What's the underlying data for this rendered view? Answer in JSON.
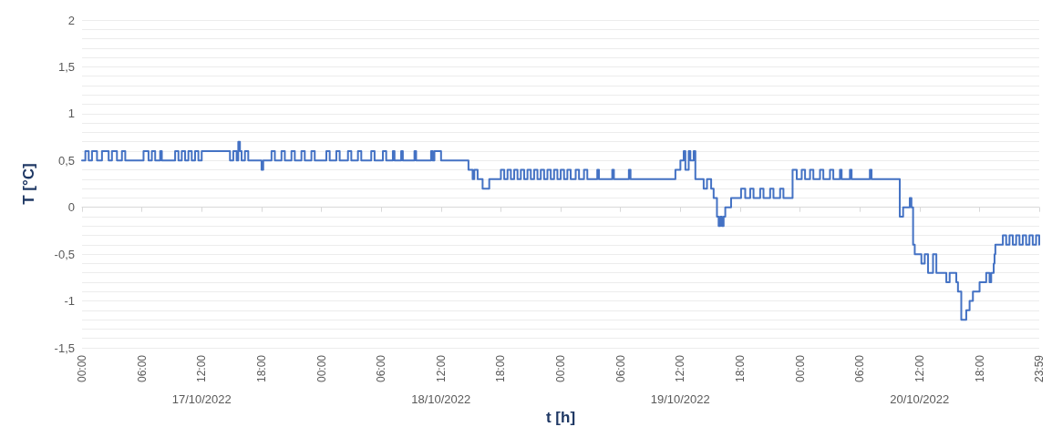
{
  "chart_data": {
    "type": "step",
    "xlabel": "t [h]",
    "ylabel": "T [°C]",
    "grid": "y",
    "marker": "none",
    "line_style": "solid",
    "xlim": [
      "2022-10-17T00:00",
      "2022-10-20T23:59"
    ],
    "xticks": [
      {
        "value": "2022-10-17T00:00",
        "label": "00:00"
      },
      {
        "value": "2022-10-17T06:00",
        "label": "06:00"
      },
      {
        "value": "2022-10-17T12:00",
        "label": "12:00"
      },
      {
        "value": "2022-10-17T18:00",
        "label": "18:00"
      },
      {
        "value": "2022-10-18T00:00",
        "label": "00:00"
      },
      {
        "value": "2022-10-18T06:00",
        "label": "06:00"
      },
      {
        "value": "2022-10-18T12:00",
        "label": "12:00"
      },
      {
        "value": "2022-10-18T18:00",
        "label": "18:00"
      },
      {
        "value": "2022-10-19T00:00",
        "label": "00:00"
      },
      {
        "value": "2022-10-19T06:00",
        "label": "06:00"
      },
      {
        "value": "2022-10-19T12:00",
        "label": "12:00"
      },
      {
        "value": "2022-10-19T18:00",
        "label": "18:00"
      },
      {
        "value": "2022-10-20T00:00",
        "label": "00:00"
      },
      {
        "value": "2022-10-20T06:00",
        "label": "06:00"
      },
      {
        "value": "2022-10-20T12:00",
        "label": "12:00"
      },
      {
        "value": "2022-10-20T18:00",
        "label": "18:00"
      },
      {
        "value": "2022-10-20T23:59",
        "label": "23:59"
      }
    ],
    "ylim": [
      -1.5,
      2
    ],
    "yticks": [
      {
        "value": -1.5,
        "label": "-1,5"
      },
      {
        "value": -1.4,
        "label": null
      },
      {
        "value": -1.3,
        "label": null
      },
      {
        "value": -1.2,
        "label": null
      },
      {
        "value": -1.1,
        "label": null
      },
      {
        "value": -1,
        "label": "-1"
      },
      {
        "value": -0.9,
        "label": null
      },
      {
        "value": -0.8,
        "label": null
      },
      {
        "value": -0.7,
        "label": null
      },
      {
        "value": -0.6,
        "label": null
      },
      {
        "value": -0.5,
        "label": "-0,5"
      },
      {
        "value": -0.4,
        "label": null
      },
      {
        "value": -0.3,
        "label": null
      },
      {
        "value": -0.2,
        "label": null
      },
      {
        "value": -0.1,
        "label": null
      },
      {
        "value": 0,
        "label": "0"
      },
      {
        "value": 0.1,
        "label": null
      },
      {
        "value": 0.2,
        "label": null
      },
      {
        "value": 0.3,
        "label": null
      },
      {
        "value": 0.4,
        "label": null
      },
      {
        "value": 0.5,
        "label": "0,5"
      },
      {
        "value": 0.6,
        "label": null
      },
      {
        "value": 0.7,
        "label": null
      },
      {
        "value": 0.8,
        "label": null
      },
      {
        "value": 0.9,
        "label": null
      },
      {
        "value": 1,
        "label": "1"
      },
      {
        "value": 1.1,
        "label": null
      },
      {
        "value": 1.2,
        "label": null
      },
      {
        "value": 1.3,
        "label": null
      },
      {
        "value": 1.4,
        "label": null
      },
      {
        "value": 1.5,
        "label": "1,5"
      },
      {
        "value": 1.6,
        "label": null
      },
      {
        "value": 1.7,
        "label": null
      },
      {
        "value": 1.8,
        "label": null
      },
      {
        "value": 1.9,
        "label": null
      },
      {
        "value": 2,
        "label": "2"
      }
    ],
    "annotations": [
      "17/10/2022",
      "18/10/2022",
      "19/10/2022",
      "20/10/2022"
    ],
    "series": [
      {
        "color": "#4472c4",
        "x": [
          "2022-10-17T00:00",
          "2022-10-17T00:20",
          "2022-10-17T00:40",
          "2022-10-17T01:00",
          "2022-10-17T01:30",
          "2022-10-17T02:00",
          "2022-10-17T02:40",
          "2022-10-17T03:00",
          "2022-10-17T03:30",
          "2022-10-17T04:00",
          "2022-10-17T04:20",
          "2022-10-17T06:10",
          "2022-10-17T06:40",
          "2022-10-17T07:00",
          "2022-10-17T07:20",
          "2022-10-17T07:50",
          "2022-10-17T08:00",
          "2022-10-17T09:20",
          "2022-10-17T09:40",
          "2022-10-17T10:00",
          "2022-10-17T10:20",
          "2022-10-17T10:40",
          "2022-10-17T11:00",
          "2022-10-17T11:20",
          "2022-10-17T11:40",
          "2022-10-17T12:00",
          "2022-10-17T14:50",
          "2022-10-17T15:10",
          "2022-10-17T15:30",
          "2022-10-17T15:40",
          "2022-10-17T15:50",
          "2022-10-17T16:00",
          "2022-10-17T16:20",
          "2022-10-17T16:40",
          "2022-10-17T18:00",
          "2022-10-17T18:10",
          "2022-10-17T19:00",
          "2022-10-17T19:20",
          "2022-10-17T20:00",
          "2022-10-17T20:20",
          "2022-10-17T21:00",
          "2022-10-17T21:20",
          "2022-10-17T22:00",
          "2022-10-17T22:20",
          "2022-10-17T23:00",
          "2022-10-17T23:20",
          "2022-10-18T00:30",
          "2022-10-18T00:50",
          "2022-10-18T01:30",
          "2022-10-18T01:50",
          "2022-10-18T02:40",
          "2022-10-18T03:00",
          "2022-10-18T03:40",
          "2022-10-18T04:00",
          "2022-10-18T05:00",
          "2022-10-18T05:20",
          "2022-10-18T06:10",
          "2022-10-18T06:30",
          "2022-10-18T07:10",
          "2022-10-18T07:20",
          "2022-10-18T08:00",
          "2022-10-18T08:10",
          "2022-10-18T09:20",
          "2022-10-18T09:30",
          "2022-10-18T11:00",
          "2022-10-18T11:10",
          "2022-10-18T11:20",
          "2022-10-18T12:00",
          "2022-10-18T14:45",
          "2022-10-18T15:10",
          "2022-10-18T15:20",
          "2022-10-18T15:40",
          "2022-10-18T16:10",
          "2022-10-18T16:50",
          "2022-10-18T18:00",
          "2022-10-18T18:20",
          "2022-10-18T18:40",
          "2022-10-18T19:00",
          "2022-10-18T19:20",
          "2022-10-18T19:40",
          "2022-10-18T20:00",
          "2022-10-18T20:20",
          "2022-10-18T20:40",
          "2022-10-18T21:00",
          "2022-10-18T21:20",
          "2022-10-18T21:40",
          "2022-10-18T22:00",
          "2022-10-18T22:20",
          "2022-10-18T22:40",
          "2022-10-18T23:00",
          "2022-10-18T23:20",
          "2022-10-18T23:40",
          "2022-10-19T00:00",
          "2022-10-19T00:20",
          "2022-10-19T00:40",
          "2022-10-19T01:00",
          "2022-10-19T01:30",
          "2022-10-19T01:50",
          "2022-10-19T02:20",
          "2022-10-19T02:40",
          "2022-10-19T03:40",
          "2022-10-19T03:50",
          "2022-10-19T05:10",
          "2022-10-19T05:20",
          "2022-10-19T06:50",
          "2022-10-19T07:00",
          "2022-10-19T11:30",
          "2022-10-19T12:00",
          "2022-10-19T12:20",
          "2022-10-19T12:30",
          "2022-10-19T12:50",
          "2022-10-19T13:00",
          "2022-10-19T13:20",
          "2022-10-19T13:30",
          "2022-10-19T14:20",
          "2022-10-19T14:40",
          "2022-10-19T15:05",
          "2022-10-19T15:20",
          "2022-10-19T15:40",
          "2022-10-19T15:50",
          "2022-10-19T16:00",
          "2022-10-19T16:10",
          "2022-10-19T16:20",
          "2022-10-19T16:30",
          "2022-10-19T17:05",
          "2022-10-19T18:05",
          "2022-10-19T18:30",
          "2022-10-19T19:00",
          "2022-10-19T19:20",
          "2022-10-19T20:00",
          "2022-10-19T20:20",
          "2022-10-19T21:00",
          "2022-10-19T21:20",
          "2022-10-19T22:00",
          "2022-10-19T22:20",
          "2022-10-19T23:15",
          "2022-10-19T23:40",
          "2022-10-20T00:10",
          "2022-10-20T00:30",
          "2022-10-20T01:00",
          "2022-10-20T01:20",
          "2022-10-20T02:00",
          "2022-10-20T02:20",
          "2022-10-20T03:00",
          "2022-10-20T03:20",
          "2022-10-20T04:00",
          "2022-10-20T04:10",
          "2022-10-20T05:00",
          "2022-10-20T05:10",
          "2022-10-20T07:00",
          "2022-10-20T07:10",
          "2022-10-20T10:00",
          "2022-10-20T10:20",
          "2022-10-20T11:00",
          "2022-10-20T11:10",
          "2022-10-20T11:20",
          "2022-10-20T11:30",
          "2022-10-20T12:10",
          "2022-10-20T12:30",
          "2022-10-20T12:50",
          "2022-10-20T13:20",
          "2022-10-20T13:40",
          "2022-10-20T14:40",
          "2022-10-20T15:00",
          "2022-10-20T15:40",
          "2022-10-20T15:50",
          "2022-10-20T16:10",
          "2022-10-20T16:40",
          "2022-10-20T17:00",
          "2022-10-20T17:20",
          "2022-10-20T18:00",
          "2022-10-20T18:40",
          "2022-10-20T19:00",
          "2022-10-20T19:10",
          "2022-10-20T19:25",
          "2022-10-20T19:30",
          "2022-10-20T19:35",
          "2022-10-20T20:20",
          "2022-10-20T20:40",
          "2022-10-20T21:00",
          "2022-10-20T21:20",
          "2022-10-20T21:40",
          "2022-10-20T22:00",
          "2022-10-20T22:20",
          "2022-10-20T22:40",
          "2022-10-20T23:00",
          "2022-10-20T23:20",
          "2022-10-20T23:40",
          "2022-10-20T23:59"
        ],
        "values": [
          0.5,
          0.6,
          0.5,
          0.6,
          0.5,
          0.6,
          0.5,
          0.6,
          0.5,
          0.6,
          0.5,
          0.6,
          0.5,
          0.6,
          0.5,
          0.6,
          0.5,
          0.6,
          0.5,
          0.6,
          0.5,
          0.6,
          0.5,
          0.6,
          0.5,
          0.6,
          0.5,
          0.6,
          0.5,
          0.7,
          0.6,
          0.5,
          0.6,
          0.5,
          0.4,
          0.5,
          0.6,
          0.5,
          0.6,
          0.5,
          0.6,
          0.5,
          0.6,
          0.5,
          0.6,
          0.5,
          0.6,
          0.5,
          0.6,
          0.5,
          0.6,
          0.5,
          0.6,
          0.5,
          0.6,
          0.5,
          0.6,
          0.5,
          0.6,
          0.5,
          0.6,
          0.5,
          0.6,
          0.5,
          0.6,
          0.5,
          0.6,
          0.5,
          0.4,
          0.3,
          0.4,
          0.3,
          0.2,
          0.3,
          0.4,
          0.3,
          0.4,
          0.3,
          0.4,
          0.3,
          0.4,
          0.3,
          0.4,
          0.3,
          0.4,
          0.3,
          0.4,
          0.3,
          0.4,
          0.3,
          0.4,
          0.3,
          0.4,
          0.3,
          0.4,
          0.3,
          0.4,
          0.3,
          0.4,
          0.3,
          0.4,
          0.3,
          0.4,
          0.3,
          0.4,
          0.3,
          0.4,
          0.5,
          0.6,
          0.4,
          0.6,
          0.5,
          0.6,
          0.3,
          0.2,
          0.3,
          0.2,
          0.1,
          -0.1,
          -0.2,
          -0.1,
          -0.2,
          -0.1,
          0,
          0.1,
          0.2,
          0.1,
          0.2,
          0.1,
          0.2,
          0.1,
          0.2,
          0.1,
          0.2,
          0.1,
          0.4,
          0.3,
          0.4,
          0.3,
          0.4,
          0.3,
          0.4,
          0.3,
          0.4,
          0.3,
          0.4,
          0.3,
          0.4,
          0.3,
          0.4,
          0.3,
          -0.1,
          0,
          0.1,
          0,
          -0.4,
          -0.5,
          -0.6,
          -0.5,
          -0.7,
          -0.5,
          -0.7,
          -0.8,
          -0.7,
          -0.8,
          -0.9,
          -1.2,
          -1.1,
          -1,
          -0.9,
          -0.8,
          -0.7,
          -0.8,
          -0.7,
          -0.6,
          -0.5,
          -0.4,
          -0.3,
          -0.4,
          -0.3,
          -0.4,
          -0.3,
          -0.4,
          -0.3,
          -0.4,
          -0.3,
          -0.4,
          -0.3,
          -0.4
        ]
      }
    ]
  }
}
